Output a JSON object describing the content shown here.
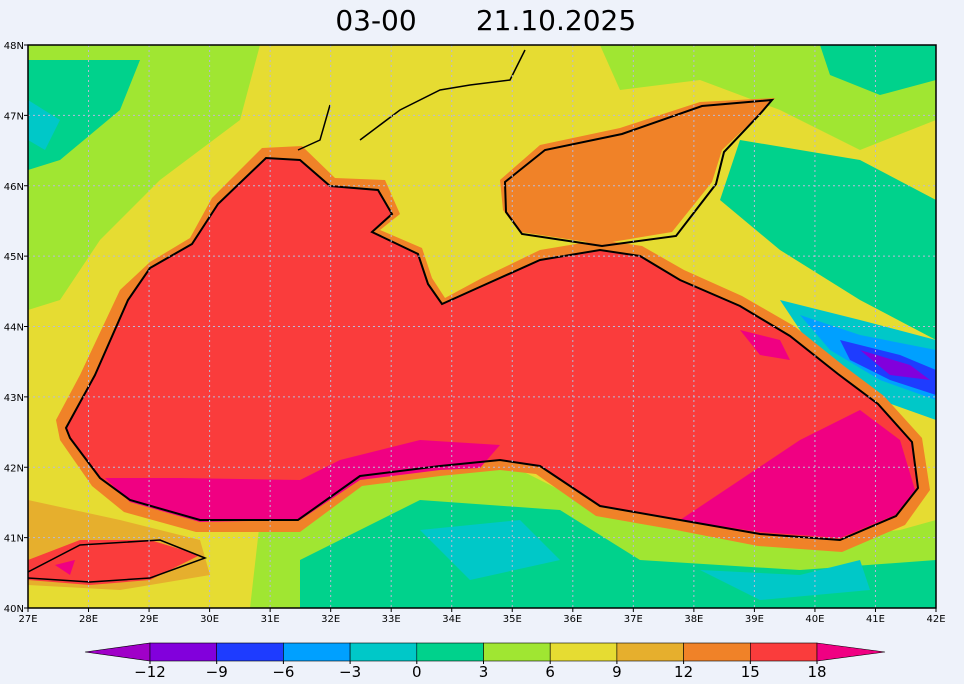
{
  "title": {
    "time": "03-00",
    "date": "21.10.2025"
  },
  "map": {
    "lon_labels": [
      "27E",
      "28E",
      "29E",
      "30E",
      "31E",
      "32E",
      "33E",
      "34E",
      "35E",
      "36E",
      "37E",
      "38E",
      "39E",
      "40E",
      "41E",
      "42E"
    ],
    "lat_labels": [
      "48N",
      "47N",
      "46N",
      "45N",
      "44N",
      "43N",
      "42N",
      "41N",
      "40N"
    ]
  },
  "colorbar": {
    "ticks": [
      {
        "value": -12,
        "label": "−12"
      },
      {
        "value": -9,
        "label": "−9"
      },
      {
        "value": -6,
        "label": "−6"
      },
      {
        "value": -3,
        "label": "−3"
      },
      0,
      3,
      6,
      9,
      12,
      15,
      18
    ],
    "colors": [
      "#a000c8",
      "#8200dc",
      "#1e3cff",
      "#00a0ff",
      "#00c8c8",
      "#00d28c",
      "#a0e632",
      "#e6dc32",
      "#e6af2d",
      "#f08228",
      "#fa3c3c",
      "#f00082"
    ]
  }
}
